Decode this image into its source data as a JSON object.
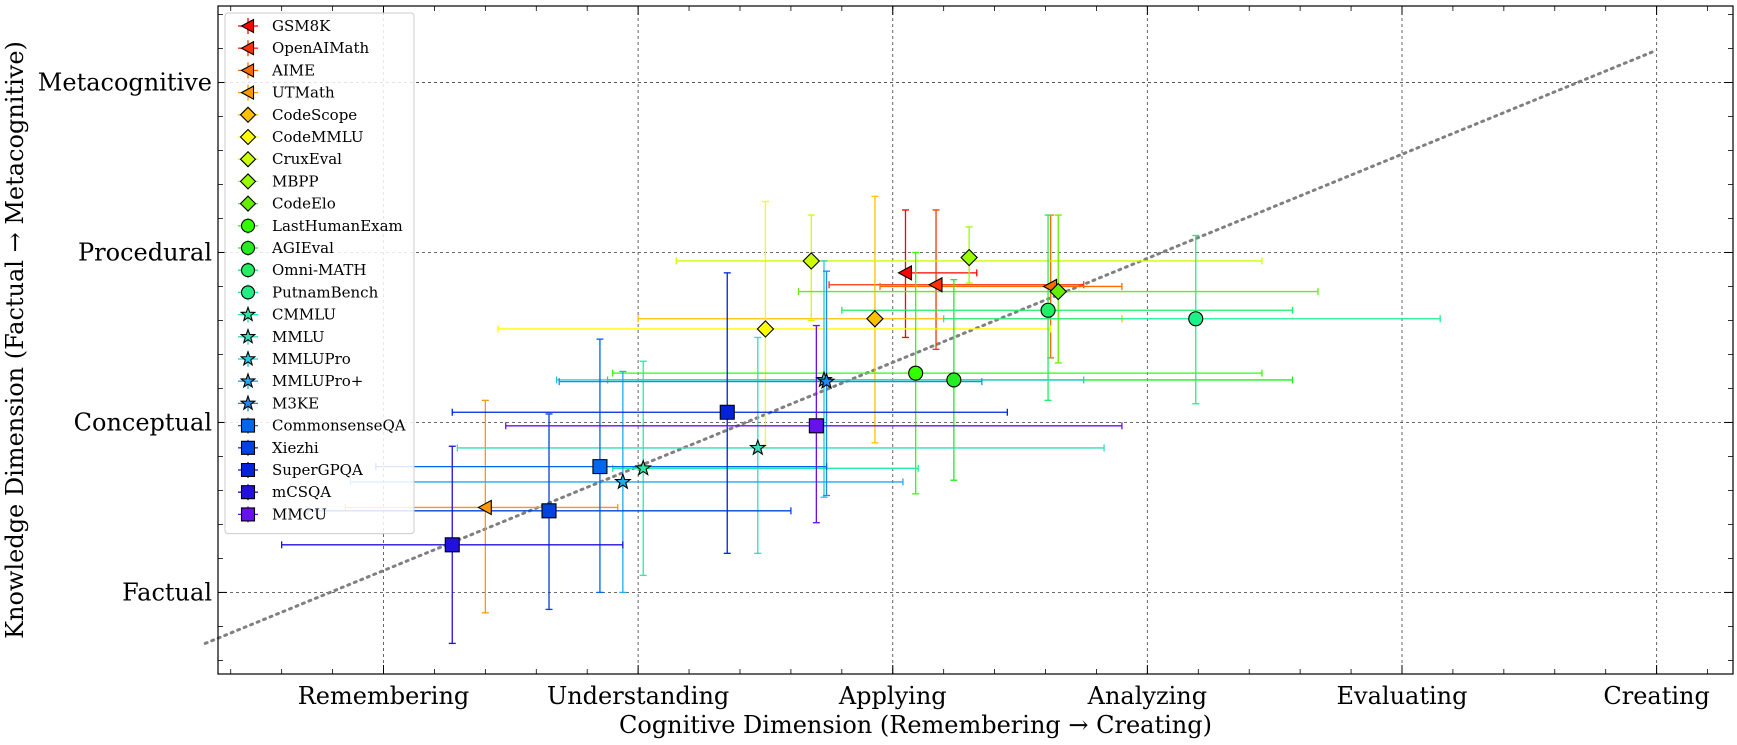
{
  "chart_data": {
    "type": "scatter",
    "xlabel": "Cognitive Dimension (Remembering → Creating)",
    "ylabel": "Knowledge Dimension (Factual → Metacognitive)",
    "xlim": [
      0.35,
      6.3
    ],
    "ylim": [
      0.52,
      4.45
    ],
    "x_ticks": [
      {
        "value": 1,
        "label": "Remembering"
      },
      {
        "value": 2,
        "label": "Understanding"
      },
      {
        "value": 3,
        "label": "Applying"
      },
      {
        "value": 4,
        "label": "Analyzing"
      },
      {
        "value": 5,
        "label": "Evaluating"
      },
      {
        "value": 6,
        "label": "Creating"
      }
    ],
    "y_ticks": [
      {
        "value": 1,
        "label": "Factual"
      },
      {
        "value": 2,
        "label": "Conceptual"
      },
      {
        "value": 3,
        "label": "Procedural"
      },
      {
        "value": 4,
        "label": "Metacognitive"
      }
    ],
    "grid": true,
    "legend_position": "top-left",
    "trend_line": {
      "style": "dotted",
      "color": "#808080",
      "from": [
        0.3,
        0.7
      ],
      "to": [
        6.0,
        4.19
      ]
    },
    "series": [
      {
        "name": "GSM8K",
        "marker": "triangle-left",
        "color": "#ff0000",
        "x": 3.05,
        "y": 2.88,
        "xerr": [
          3.05,
          3.33
        ],
        "yerr": [
          2.5,
          3.25
        ]
      },
      {
        "name": "OpenAIMath",
        "marker": "triangle-left",
        "color": "#ff3300",
        "x": 3.17,
        "y": 2.81,
        "xerr": [
          2.75,
          3.75
        ],
        "yerr": [
          2.43,
          3.25
        ]
      },
      {
        "name": "AIME",
        "marker": "triangle-left",
        "color": "#ff6a00",
        "x": 3.62,
        "y": 2.8,
        "xerr": [
          2.95,
          3.9
        ],
        "yerr": [
          2.38,
          3.22
        ]
      },
      {
        "name": "UTMath",
        "marker": "triangle-left",
        "color": "#ff9900",
        "x": 1.4,
        "y": 1.5,
        "xerr": [
          0.85,
          1.92
        ],
        "yerr": [
          0.88,
          2.13
        ]
      },
      {
        "name": "CodeScope",
        "marker": "diamond",
        "color": "#ffc000",
        "x": 2.93,
        "y": 2.61,
        "xerr": [
          2.0,
          3.9
        ],
        "yerr": [
          1.88,
          3.33
        ]
      },
      {
        "name": "CodeMMLU",
        "marker": "diamond",
        "color": "#ffff00",
        "x": 2.5,
        "y": 2.55,
        "xerr": [
          1.45,
          3.62
        ],
        "yerr": [
          1.85,
          3.3
        ]
      },
      {
        "name": "CruxEval",
        "marker": "diamond",
        "color": "#ccff00",
        "x": 2.68,
        "y": 2.95,
        "xerr": [
          2.15,
          4.45
        ],
        "yerr": [
          2.6,
          3.22
        ]
      },
      {
        "name": "MBPP",
        "marker": "diamond",
        "color": "#99ff00",
        "x": 3.3,
        "y": 2.97,
        "xerr": [
          3.3,
          3.3
        ],
        "yerr": [
          2.82,
          3.15
        ]
      },
      {
        "name": "CodeElo",
        "marker": "diamond",
        "color": "#66ee00",
        "x": 3.65,
        "y": 2.77,
        "xerr": [
          2.63,
          4.67
        ],
        "yerr": [
          2.35,
          3.22
        ]
      },
      {
        "name": "LastHumanExam",
        "marker": "circle",
        "color": "#33ff00",
        "x": 3.09,
        "y": 2.29,
        "xerr": [
          1.9,
          4.45
        ],
        "yerr": [
          1.58,
          3.0
        ]
      },
      {
        "name": "AGIEval",
        "marker": "circle",
        "color": "#22ee22",
        "x": 3.24,
        "y": 2.25,
        "xerr": [
          1.88,
          4.57
        ],
        "yerr": [
          1.66,
          2.84
        ]
      },
      {
        "name": "Omni-MATH",
        "marker": "circle",
        "color": "#22ee66",
        "x": 3.61,
        "y": 2.66,
        "xerr": [
          2.8,
          4.57
        ],
        "yerr": [
          2.13,
          3.22
        ]
      },
      {
        "name": "PutnamBench",
        "marker": "circle",
        "color": "#22ee88",
        "x": 4.19,
        "y": 2.61,
        "xerr": [
          3.2,
          5.15
        ],
        "yerr": [
          2.11,
          3.1
        ]
      },
      {
        "name": "CMMLU",
        "marker": "star",
        "color": "#22eeaa",
        "x": 2.02,
        "y": 1.73,
        "xerr": [
          1.9,
          3.1
        ],
        "yerr": [
          1.1,
          2.36
        ]
      },
      {
        "name": "MMLU",
        "marker": "star",
        "color": "#33ddbb",
        "x": 2.47,
        "y": 1.85,
        "xerr": [
          1.29,
          3.83
        ],
        "yerr": [
          1.23,
          2.5
        ]
      },
      {
        "name": "MMLUPro",
        "marker": "star",
        "color": "#22ccdd",
        "x": 2.73,
        "y": 2.25,
        "xerr": [
          1.68,
          3.75
        ],
        "yerr": [
          1.56,
          2.95
        ]
      },
      {
        "name": "MMLUPro+",
        "marker": "star",
        "color": "#22aaee",
        "x": 1.94,
        "y": 1.65,
        "xerr": [
          0.87,
          3.04
        ],
        "yerr": [
          1.0,
          2.3
        ]
      },
      {
        "name": "M3KE",
        "marker": "star",
        "color": "#2288ee",
        "x": 2.74,
        "y": 2.24,
        "xerr": [
          1.69,
          3.35
        ],
        "yerr": [
          1.57,
          2.89
        ]
      },
      {
        "name": "CommonsenseQA",
        "marker": "square",
        "color": "#0066ee",
        "x": 1.85,
        "y": 1.74,
        "xerr": [
          0.97,
          2.74
        ],
        "yerr": [
          1.0,
          2.49
        ]
      },
      {
        "name": "Xiezhi",
        "marker": "square",
        "color": "#0044dd",
        "x": 1.65,
        "y": 1.48,
        "xerr": [
          0.7,
          2.6
        ],
        "yerr": [
          0.9,
          2.05
        ]
      },
      {
        "name": "SuperGPQA",
        "marker": "square",
        "color": "#0022dd",
        "x": 2.35,
        "y": 2.06,
        "xerr": [
          1.27,
          3.45
        ],
        "yerr": [
          1.23,
          2.88
        ]
      },
      {
        "name": "mCSQA",
        "marker": "square",
        "color": "#2211dd",
        "x": 1.27,
        "y": 1.28,
        "xerr": [
          0.6,
          1.94
        ],
        "yerr": [
          0.7,
          1.86
        ]
      },
      {
        "name": "MMCU",
        "marker": "square",
        "color": "#6611ee",
        "x": 2.7,
        "y": 1.98,
        "xerr": [
          1.48,
          3.9
        ],
        "yerr": [
          1.41,
          2.57
        ]
      }
    ]
  }
}
